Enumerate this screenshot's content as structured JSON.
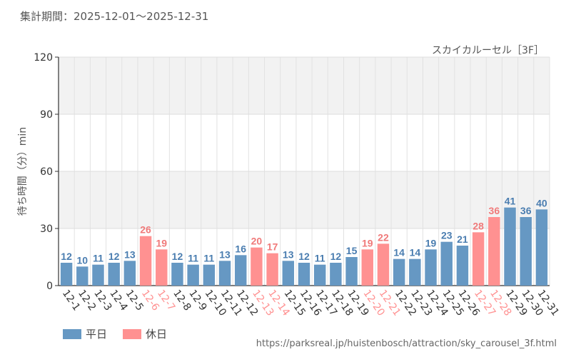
{
  "header": {
    "period_label": "集計期間：2025-12-01～2025-12-31",
    "attraction_name": "スカイカルーセル［3F］"
  },
  "legend": {
    "weekday_label": "平日",
    "holiday_label": "休日"
  },
  "colors": {
    "weekday": "#6698c3",
    "holiday": "#ff9191",
    "weekday_text": "#4a7db0",
    "holiday_text": "#f07a7a"
  },
  "source_url": "https://parksreal.jp/huistenbosch/attraction/sky_carousel_3f.html",
  "chart_data": {
    "type": "bar",
    "ylabel": "待ち時間（分）min",
    "ylim": [
      0,
      120
    ],
    "yticks": [
      0,
      30,
      60,
      90,
      120
    ],
    "categories": [
      "12-1",
      "12-2",
      "12-3",
      "12-4",
      "12-5",
      "12-6",
      "12-7",
      "12-8",
      "12-9",
      "12-10",
      "12-11",
      "12-12",
      "12-13",
      "12-14",
      "12-15",
      "12-16",
      "12-17",
      "12-18",
      "12-19",
      "12-20",
      "12-21",
      "12-22",
      "12-23",
      "12-24",
      "12-25",
      "12-26",
      "12-27",
      "12-28",
      "12-29",
      "12-30",
      "12-31"
    ],
    "values": [
      12,
      10,
      11,
      12,
      13,
      26,
      19,
      12,
      11,
      11,
      13,
      16,
      20,
      17,
      13,
      12,
      11,
      12,
      15,
      19,
      22,
      14,
      14,
      19,
      23,
      21,
      28,
      36,
      41,
      36,
      40
    ],
    "holiday": [
      false,
      false,
      false,
      false,
      false,
      true,
      true,
      false,
      false,
      false,
      false,
      false,
      true,
      true,
      false,
      false,
      false,
      false,
      false,
      true,
      true,
      false,
      false,
      false,
      false,
      false,
      true,
      true,
      false,
      false,
      false
    ]
  }
}
